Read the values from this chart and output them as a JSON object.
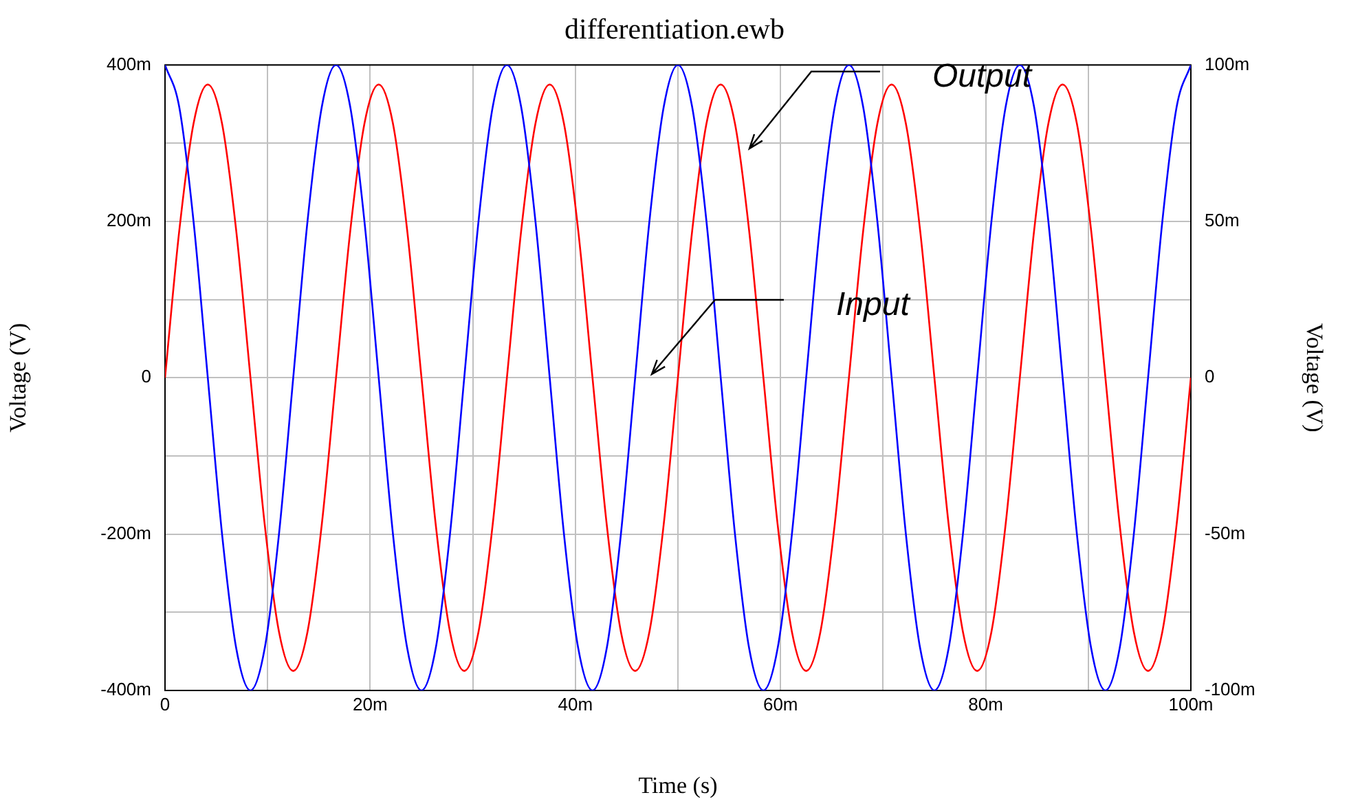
{
  "chart_data": {
    "type": "line",
    "title": "differentiation.ewb",
    "xlabel": "Time (s)",
    "ylabel": "Voltage (V)",
    "y2label": "Voltage (V)",
    "x": [
      0,
      1.39,
      2.78,
      4.17,
      5.56,
      6.94,
      8.33,
      9.72,
      11.11,
      12.5,
      13.89,
      15.28,
      16.67,
      18.06,
      19.44,
      20.83,
      22.22,
      23.61,
      25,
      26.39,
      27.78,
      29.17,
      30.56,
      31.94,
      33.33,
      34.72,
      36.11,
      37.5,
      38.89,
      40.28,
      41.67,
      43.06,
      44.44,
      45.83,
      47.22,
      48.61,
      50,
      51.39,
      52.78,
      54.17,
      55.56,
      56.94,
      58.33,
      59.72,
      61.11,
      62.5,
      63.89,
      65.28,
      66.67,
      68.06,
      69.44,
      70.83,
      72.22,
      73.61,
      75,
      76.39,
      77.78,
      79.17,
      80.56,
      81.94,
      83.33,
      84.72,
      86.11,
      87.5,
      88.89,
      90.28,
      91.67,
      93.06,
      94.44,
      95.83,
      97.22,
      98.61,
      100
    ],
    "series": [
      {
        "color": "#0000ff",
        "values": [
          400,
          346,
          200,
          0,
          -200,
          -346,
          -400,
          -346,
          -200,
          0,
          200,
          346,
          400,
          346,
          200,
          0,
          -200,
          -346,
          -400,
          -346,
          -200,
          0,
          200,
          346,
          400,
          346,
          200,
          0,
          -200,
          -346,
          -400,
          -346,
          -200,
          0,
          200,
          346,
          400,
          346,
          200,
          0,
          -200,
          -346,
          -400,
          -346,
          -200,
          0,
          200,
          346,
          400,
          346,
          200,
          0,
          -200,
          -346,
          -400,
          -346,
          -200,
          0,
          200,
          346,
          400,
          346,
          200,
          0,
          -200,
          -346,
          -400,
          -346,
          -200,
          0,
          200,
          346,
          400
        ]
      },
      {
        "color": "#ff0000",
        "values": [
          0,
          188,
          325,
          375,
          325,
          188,
          0,
          -188,
          -325,
          -375,
          -325,
          -188,
          0,
          188,
          325,
          375,
          325,
          188,
          0,
          -188,
          -325,
          -375,
          -325,
          -188,
          0,
          188,
          325,
          375,
          325,
          188,
          0,
          -188,
          -325,
          -375,
          -325,
          -188,
          0,
          188,
          325,
          375,
          325,
          188,
          0,
          -188,
          -325,
          -375,
          -325,
          -188,
          0,
          188,
          325,
          375,
          325,
          188,
          0,
          -188,
          -325,
          -375,
          -325,
          -188,
          0,
          188,
          325,
          375,
          325,
          188,
          0,
          -188,
          -325,
          -375,
          -325,
          -188,
          0
        ]
      }
    ],
    "xlim": [
      0,
      100
    ],
    "xticks": [
      {
        "value": 0,
        "label": "0"
      },
      {
        "value": 10,
        "label": null
      },
      {
        "value": 20,
        "label": "20m"
      },
      {
        "value": 30,
        "label": null
      },
      {
        "value": 40,
        "label": "40m"
      },
      {
        "value": 50,
        "label": null
      },
      {
        "value": 60,
        "label": "60m"
      },
      {
        "value": 70,
        "label": null
      },
      {
        "value": 80,
        "label": "80m"
      },
      {
        "value": 90,
        "label": null
      },
      {
        "value": 100,
        "label": "100m"
      }
    ],
    "ylim": [
      -400,
      400
    ],
    "yticks": [
      {
        "value": -400,
        "label": "-400m"
      },
      {
        "value": -300,
        "label": null
      },
      {
        "value": -200,
        "label": "-200m"
      },
      {
        "value": -100,
        "label": null
      },
      {
        "value": 0,
        "label": "0"
      },
      {
        "value": 100,
        "label": null
      },
      {
        "value": 200,
        "label": "200m"
      },
      {
        "value": 300,
        "label": null
      },
      {
        "value": 400,
        "label": "400m"
      }
    ],
    "y2lim": [
      -100,
      100
    ],
    "y2ticks": [
      {
        "value": -100,
        "label": "-100m"
      },
      {
        "value": -50,
        "label": "-50m"
      },
      {
        "value": 0,
        "label": "0"
      },
      {
        "value": 50,
        "label": "50m"
      },
      {
        "value": 100,
        "label": "100m"
      }
    ],
    "annotations": [
      "Output",
      "Input"
    ],
    "grid": true,
    "legend": false,
    "marker": "none",
    "line_style": "solid"
  }
}
